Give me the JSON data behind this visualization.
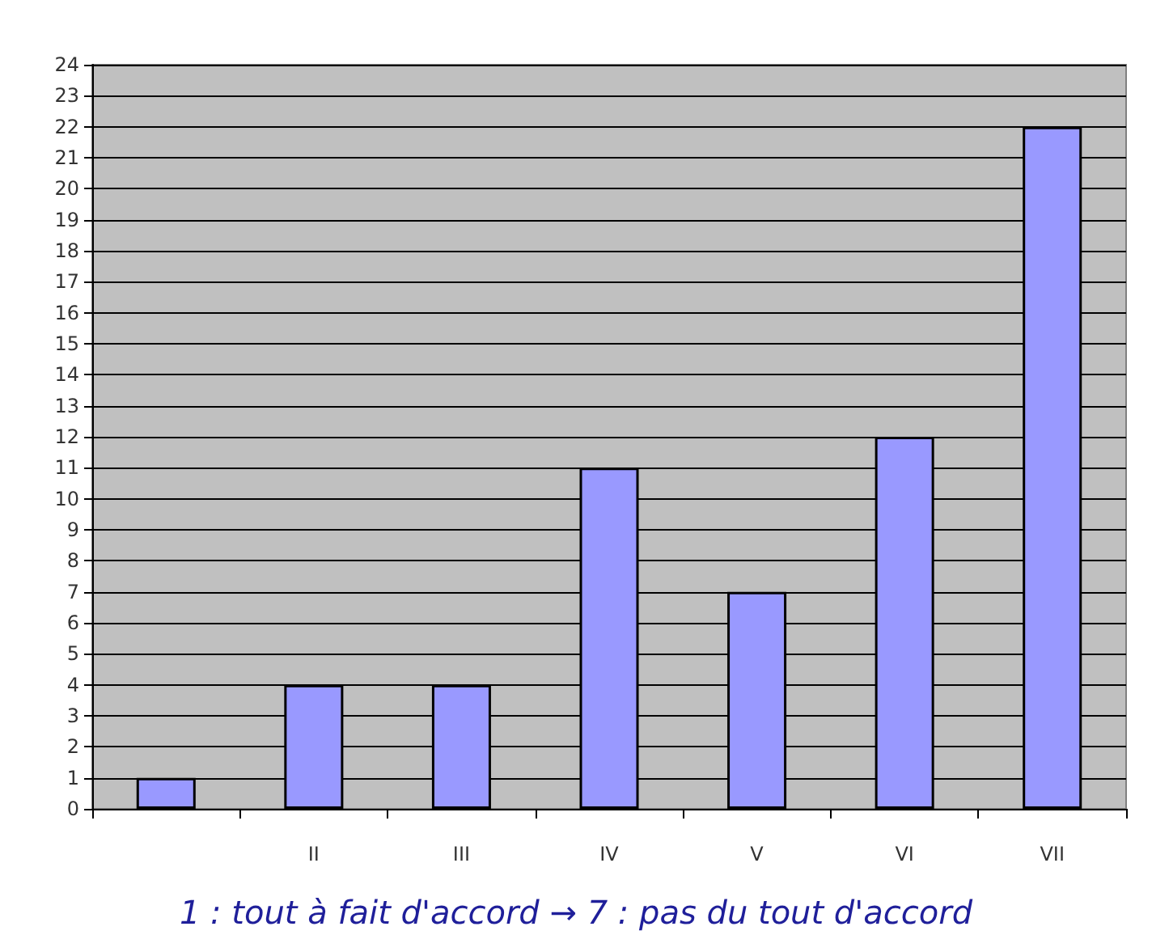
{
  "chart_data": {
    "type": "bar",
    "categories": [
      null,
      "II",
      "III",
      "IV",
      "V",
      "VI",
      "VII"
    ],
    "values": [
      1,
      4,
      4,
      11,
      7,
      12,
      22
    ],
    "color": "#9999ff",
    "ylim": [
      0,
      24
    ],
    "yticks": [
      0,
      1,
      2,
      3,
      4,
      5,
      6,
      7,
      8,
      9,
      10,
      11,
      12,
      13,
      14,
      15,
      16,
      17,
      18,
      19,
      20,
      21,
      22,
      23,
      24
    ],
    "grid": "y",
    "annotations": [
      "1 : tout à fait d'accord → 7 : pas du tout d'accord"
    ]
  }
}
